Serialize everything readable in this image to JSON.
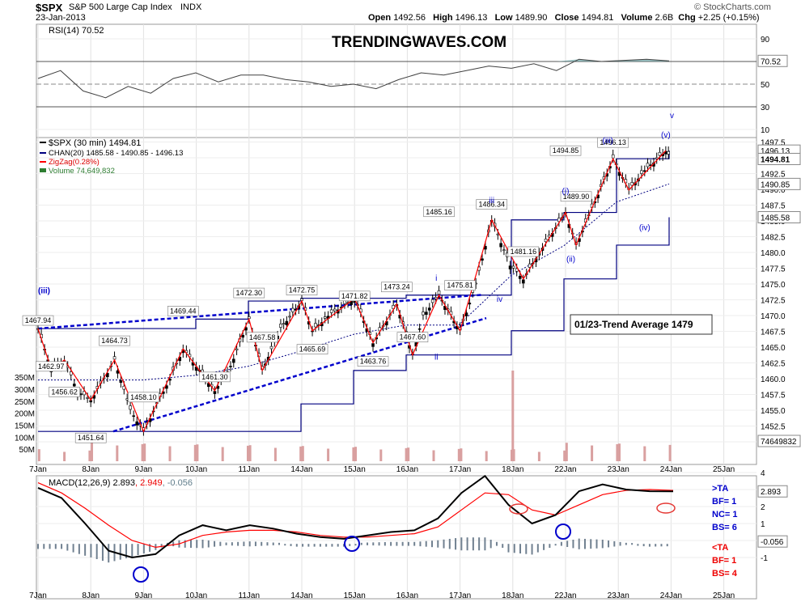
{
  "header": {
    "symbol": "$SPX",
    "name": "S&P 500 Large Cap Index",
    "exchange": "INDX",
    "date": "23-Jan-2013",
    "open_label": "Open",
    "open": "1492.56",
    "high_label": "High",
    "high": "1496.13",
    "low_label": "Low",
    "low": "1489.90",
    "close_label": "Close",
    "close": "1494.81",
    "volume_label": "Volume",
    "volume": "2.6B",
    "chg_label": "Chg",
    "chg": "+2.25 (+0.15%)",
    "attribution": "© StockCharts.com"
  },
  "watermark": "TRENDINGWAVES.COM",
  "rsi_panel": {
    "label": "RSI(14) 70.52",
    "current": "70.52",
    "ticks": [
      "90",
      "70",
      "50",
      "30",
      "10"
    ],
    "annotation": "v",
    "colors": {
      "line": "#404040",
      "fill": "#5f9ea0"
    }
  },
  "price_panel": {
    "legend": {
      "main": "$SPX (30 min) 1494.81",
      "chan": "CHAN(20) 1485.58 - 1490.85 - 1496.13",
      "zigzag": "ZigZag(0.28%)",
      "volume": "Volume 74,649,832"
    },
    "y_ticks": [
      "1497.5",
      "1495.0",
      "1492.5",
      "1490.0",
      "1487.5",
      "1485.0",
      "1482.5",
      "1480.0",
      "1477.5",
      "1475.0",
      "1472.5",
      "1470.0",
      "1467.5",
      "1465.0",
      "1462.5",
      "1460.0",
      "1457.5",
      "1455.0",
      "1452.5",
      "1450.0"
    ],
    "right_tags": [
      "1496.13",
      "1494.81",
      "1490.85",
      "1485.58",
      "74649832"
    ],
    "volume_ticks": [
      "350M",
      "300M",
      "250M",
      "200M",
      "150M",
      "100M",
      "50M"
    ],
    "trend_box": "01/23-Trend Average 1479",
    "price_labels": [
      "1467.94",
      "1462.97",
      "1456.62",
      "1451.64",
      "1464.73",
      "1458.10",
      "1469.44",
      "1461.30",
      "1472.30",
      "1467.58",
      "1472.75",
      "1465.69",
      "1471.82",
      "1463.76",
      "1473.24",
      "1467.60",
      "1485.16",
      "1475.81",
      "1486.34",
      "1481.16",
      "1494.85",
      "1489.90",
      "1496.13"
    ],
    "wave_labels": [
      "(iii)",
      "i",
      "ii",
      "iii",
      "iv",
      "(i)",
      "(ii)",
      "(iii)",
      "(iv)",
      "(v)"
    ],
    "colors": {
      "candles": "#000000",
      "zigzag": "#ff0000",
      "channel": "#000080",
      "trend": "#0000cc",
      "volume": "#d9a0a0"
    }
  },
  "x_axis": [
    "7Jan",
    "8Jan",
    "9Jan",
    "10Jan",
    "11Jan",
    "14Jan",
    "15Jan",
    "16Jan",
    "17Jan",
    "18Jan",
    "22Jan",
    "23Jan",
    "24Jan",
    "25Jan"
  ],
  "macd_panel": {
    "label": "MACD(12,26,9) 2.893, 2.949, -0.056",
    "label_parts": [
      "MACD(12,26,9)",
      "2.893",
      "2.949",
      "-0.056"
    ],
    "ticks": [
      "4",
      "3",
      "2",
      "1",
      "0",
      "-1"
    ],
    "right_tags": [
      "2.893",
      "-0.056"
    ],
    "notes": [
      {
        "text": ">TA",
        "color": "#0000cc"
      },
      {
        "text": "BF= 1",
        "color": "#0000cc"
      },
      {
        "text": "NC= 1",
        "color": "#0000cc"
      },
      {
        "text": "BS= 6",
        "color": "#0000cc"
      },
      {
        "text": "<TA",
        "color": "#ee0000"
      },
      {
        "text": "BF= 1",
        "color": "#ee0000"
      },
      {
        "text": "BS= 4",
        "color": "#ee0000"
      }
    ],
    "colors": {
      "macd": "#000000",
      "signal": "#ff0000",
      "hist": "#708090"
    }
  },
  "chart_data": {
    "type": "line",
    "title": "$SPX S&P 500 Large Cap Index INDX",
    "x_dates": [
      "7Jan",
      "8Jan",
      "9Jan",
      "10Jan",
      "11Jan",
      "14Jan",
      "15Jan",
      "16Jan",
      "17Jan",
      "18Jan",
      "22Jan",
      "23Jan",
      "24Jan",
      "25Jan"
    ],
    "ylim": [
      1449,
      1500
    ],
    "series": [
      {
        "name": "$SPX (30 min)",
        "x_session": [
          0,
          0.25,
          0.5,
          0.75,
          1.0,
          1.25,
          1.45,
          1.75,
          2.0,
          2.25,
          2.5,
          2.75,
          3.0,
          3.35,
          3.65,
          4.0,
          4.25,
          4.6,
          5.0,
          5.2,
          5.5,
          6.0,
          6.35,
          6.8,
          7.1,
          7.3,
          7.6,
          8.0,
          8.3,
          8.6,
          8.95,
          9.2,
          9.5,
          10.0,
          10.2,
          10.5,
          10.9,
          11.2,
          11.5,
          11.9,
          12.0
        ],
        "values": [
          1467.94,
          1461.5,
          1462.97,
          1458,
          1456.62,
          1460,
          1462.97,
          1455,
          1451.64,
          1456,
          1460,
          1464.73,
          1462,
          1458.1,
          1462,
          1469.44,
          1461.3,
          1468,
          1472.3,
          1467.58,
          1470,
          1472.75,
          1465.69,
          1471.82,
          1463.76,
          1470,
          1473.24,
          1467.6,
          1475,
          1485.16,
          1478,
          1475.81,
          1480,
          1486.34,
          1481.16,
          1487,
          1494.85,
          1489.9,
          1493,
          1496.13,
          1494.81
        ]
      },
      {
        "name": "ZigZag(0.28%)",
        "x_session": [
          0,
          0.25,
          0.5,
          1.0,
          1.45,
          2.0,
          2.75,
          3.35,
          4.0,
          4.25,
          5.0,
          5.2,
          6.0,
          6.35,
          6.8,
          7.1,
          7.6,
          8.0,
          8.6,
          9.2,
          10.0,
          10.2,
          10.9,
          11.2,
          11.9
        ],
        "values": [
          1467.94,
          1461.5,
          1462.97,
          1456.62,
          1462.97,
          1451.64,
          1464.73,
          1458.1,
          1469.44,
          1461.3,
          1472.3,
          1467.58,
          1472.75,
          1465.69,
          1471.82,
          1463.76,
          1473.24,
          1467.6,
          1485.16,
          1475.81,
          1486.34,
          1481.16,
          1494.85,
          1489.9,
          1496.13
        ]
      }
    ],
    "channel_upper": [
      1467.94,
      1467.94,
      1467.94,
      1469.44,
      1472.3,
      1472.75,
      1472.75,
      1473.24,
      1473.24,
      1485.16,
      1486.34,
      1494.85,
      1496.13
    ],
    "channel_lower": [
      1451.64,
      1451.64,
      1451.64,
      1451.64,
      1451.64,
      1456,
      1461.3,
      1463.76,
      1463.76,
      1467.6,
      1475.81,
      1481.16,
      1485.58
    ],
    "rsi": [
      55,
      62,
      44,
      38,
      48,
      42,
      55,
      60,
      52,
      58,
      58,
      54,
      52,
      48,
      50,
      46,
      54,
      60,
      58,
      62,
      66,
      64,
      68,
      62,
      72,
      70,
      71,
      72,
      70.52
    ],
    "macd": [
      3.1,
      2.5,
      1.0,
      -0.6,
      -1.0,
      -0.8,
      0.3,
      0.9,
      0.6,
      0.9,
      0.7,
      0.4,
      0.2,
      0.1,
      0.3,
      0.5,
      0.6,
      1.3,
      2.8,
      3.8,
      2.1,
      1.0,
      1.5,
      2.9,
      3.3,
      3.0,
      2.9,
      2.893
    ],
    "signal": [
      3.4,
      2.8,
      1.9,
      0.9,
      0.0,
      -0.4,
      -0.2,
      0.3,
      0.5,
      0.6,
      0.6,
      0.5,
      0.3,
      0.2,
      0.2,
      0.3,
      0.4,
      0.8,
      1.8,
      2.8,
      2.7,
      1.8,
      1.5,
      2.1,
      2.7,
      2.95,
      3.0,
      2.949
    ]
  }
}
